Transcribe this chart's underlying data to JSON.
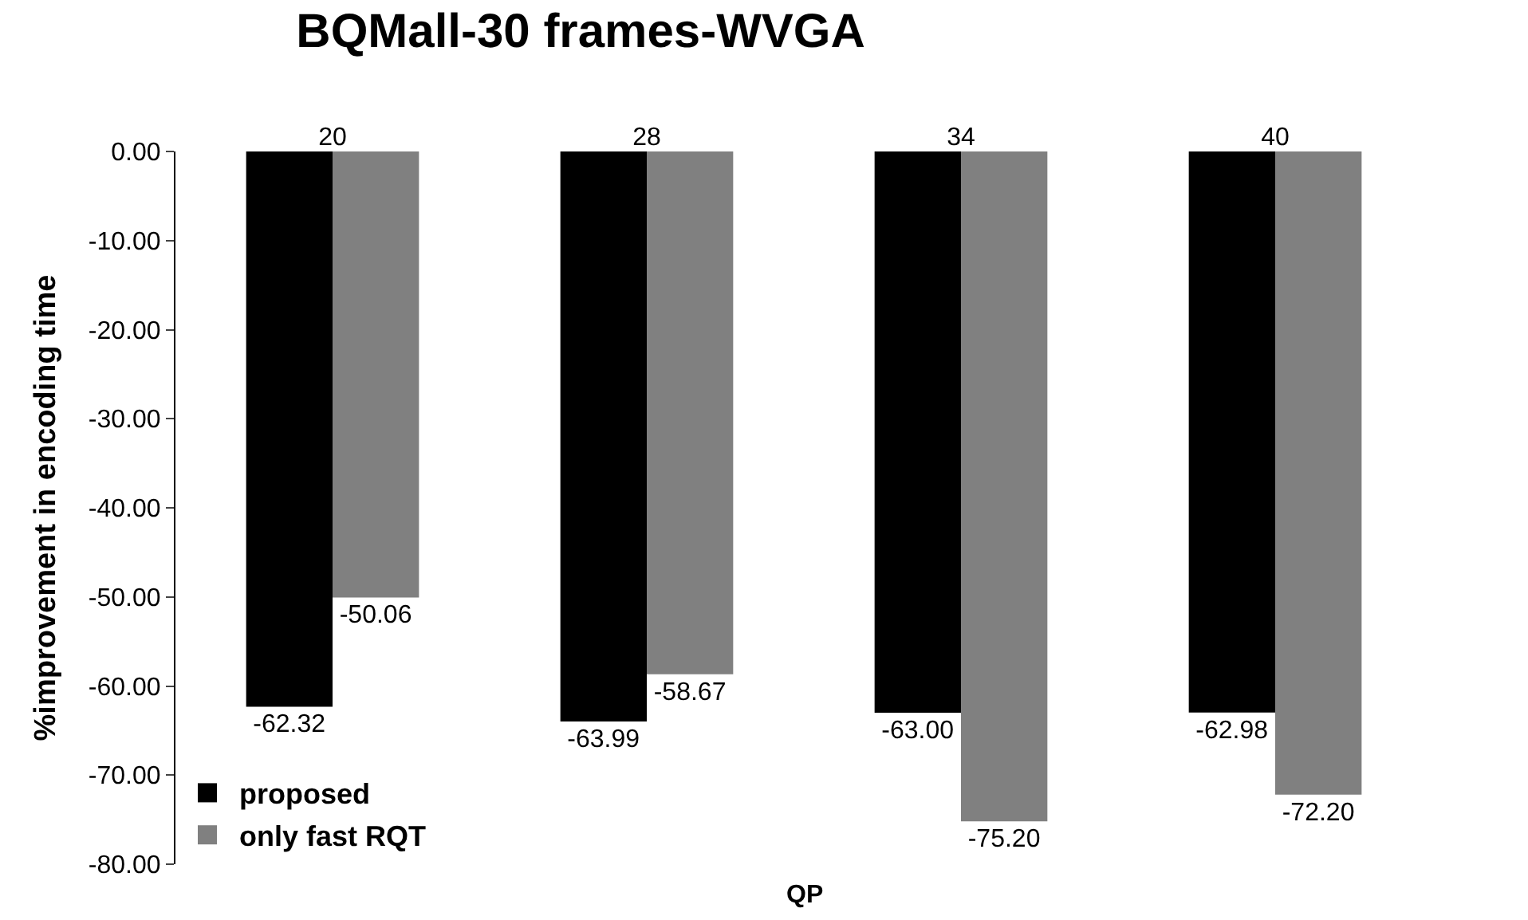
{
  "chart_data": {
    "type": "bar",
    "title": "BQMall-30 frames-WVGA",
    "xlabel": "QP",
    "ylabel": "%improvement in encoding time",
    "categories": [
      "20",
      "28",
      "34",
      "40"
    ],
    "series": [
      {
        "name": "proposed",
        "color": "#000000",
        "values": [
          -62.32,
          -63.99,
          -63.0,
          -62.98
        ],
        "value_labels": [
          "-62.32",
          "-63.99",
          "-63.00",
          "-62.98"
        ]
      },
      {
        "name": "only fast RQT",
        "color": "#808080",
        "values": [
          -50.06,
          -58.67,
          -75.2,
          -72.2
        ],
        "value_labels": [
          "-50.06",
          "-58.67",
          "-75.20",
          "-72.20"
        ]
      }
    ],
    "ylim": [
      -80,
      0
    ],
    "yticks": [
      {
        "value": 0,
        "label": "0.00"
      },
      {
        "value": -10,
        "label": "-10.00"
      },
      {
        "value": -20,
        "label": "-20.00"
      },
      {
        "value": -30,
        "label": "-30.00"
      },
      {
        "value": -40,
        "label": "-40.00"
      },
      {
        "value": -50,
        "label": "-50.00"
      },
      {
        "value": -60,
        "label": "-60.00"
      },
      {
        "value": -70,
        "label": "-70.00"
      },
      {
        "value": -80,
        "label": "-80.00"
      }
    ],
    "legend": "bottom left"
  }
}
